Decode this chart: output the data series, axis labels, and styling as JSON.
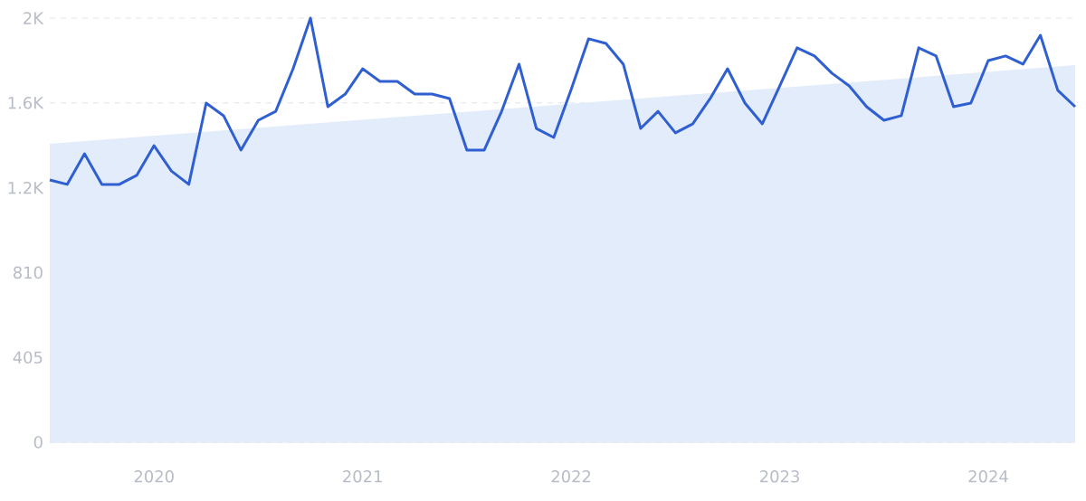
{
  "chart_data": {
    "type": "line",
    "xlim": [
      "2019-07",
      "2024-06"
    ],
    "ylim": [
      0,
      2025
    ],
    "yticks": [
      0,
      405,
      810,
      {
        "value": 1215,
        "label": "1.2K"
      },
      {
        "value": 1620,
        "label": "1.6K"
      },
      {
        "value": 2025,
        "label": "2K"
      }
    ],
    "xticks": [
      {
        "value": "2020-01",
        "label": "2020"
      },
      {
        "value": "2021-01",
        "label": "2021"
      },
      {
        "value": "2022-01",
        "label": "2022"
      },
      {
        "value": "2023-01",
        "label": "2023"
      },
      {
        "value": "2024-01",
        "label": "2024"
      }
    ],
    "grid": "y",
    "series": [
      {
        "type": "area",
        "color": "#e2ecfb",
        "x": [
          "2019-07",
          "2024-06"
        ],
        "values": [
          1425,
          1800
        ]
      },
      {
        "color": "#2f5fd0",
        "x": [
          "2019-07",
          "2019-08",
          "2019-09",
          "2019-10",
          "2019-11",
          "2019-12",
          "2020-01",
          "2020-02",
          "2020-03",
          "2020-04",
          "2020-05",
          "2020-06",
          "2020-07",
          "2020-08",
          "2020-09",
          "2020-10",
          "2020-11",
          "2020-12",
          "2021-01",
          "2021-02",
          "2021-03",
          "2021-04",
          "2021-05",
          "2021-06",
          "2021-07",
          "2021-08",
          "2021-09",
          "2021-10",
          "2021-11",
          "2021-12",
          "2022-01",
          "2022-02",
          "2022-03",
          "2022-04",
          "2022-05",
          "2022-06",
          "2022-07",
          "2022-08",
          "2022-09",
          "2022-10",
          "2022-11",
          "2022-12",
          "2023-01",
          "2023-02",
          "2023-03",
          "2023-04",
          "2023-05",
          "2023-06",
          "2023-07",
          "2023-08",
          "2023-09",
          "2023-10",
          "2023-11",
          "2023-12",
          "2024-01",
          "2024-02",
          "2024-03",
          "2024-04",
          "2024-05",
          "2024-06"
        ],
        "values": [
          1252,
          1231,
          1377,
          1231,
          1231,
          1274,
          1416,
          1295,
          1231,
          1619,
          1559,
          1395,
          1537,
          1580,
          1783,
          2025,
          1602,
          1662,
          1783,
          1723,
          1723,
          1662,
          1662,
          1641,
          1395,
          1395,
          1580,
          1805,
          1498,
          1455,
          1684,
          1926,
          1904,
          1805,
          1498,
          1580,
          1477,
          1520,
          1641,
          1783,
          1619,
          1520,
          1701,
          1883,
          1844,
          1762,
          1701,
          1602,
          1537,
          1559,
          1883,
          1844,
          1602,
          1619,
          1822,
          1844,
          1805,
          1943,
          1680,
          1602
        ]
      }
    ]
  }
}
